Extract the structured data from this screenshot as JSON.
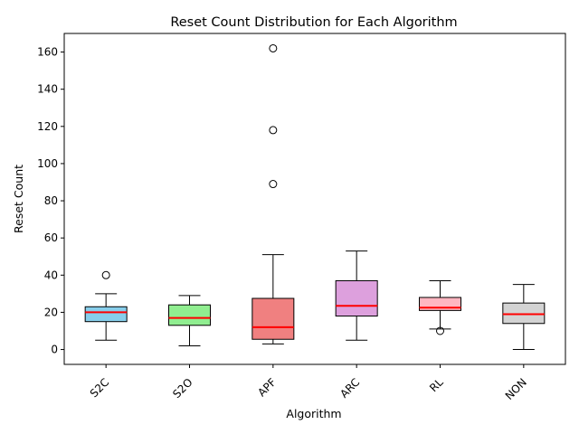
{
  "chart_data": {
    "type": "box",
    "title": "Reset Count Distribution for Each Algorithm",
    "xlabel": "Algorithm",
    "ylabel": "Reset Count",
    "ylim": [
      -8,
      170
    ],
    "yticks": [
      0,
      20,
      40,
      60,
      80,
      100,
      120,
      140,
      160
    ],
    "grid": false,
    "legend": "none",
    "categories": [
      "S2C",
      "S2O",
      "APF",
      "ARC",
      "RL",
      "NON"
    ],
    "boxes": [
      {
        "label": "S2C",
        "whisker_low": 5,
        "q1": 15,
        "median": 20,
        "q3": 23,
        "whisker_high": 30,
        "outliers": [
          40
        ],
        "color": "#87ceeb"
      },
      {
        "label": "S2O",
        "whisker_low": 2,
        "q1": 13,
        "median": 17,
        "q3": 24,
        "whisker_high": 29,
        "outliers": [],
        "color": "#90ee90"
      },
      {
        "label": "APF",
        "whisker_low": 3,
        "q1": 5.5,
        "median": 12,
        "q3": 27.5,
        "whisker_high": 51,
        "outliers": [
          89,
          118,
          162
        ],
        "color": "#f08080"
      },
      {
        "label": "ARC",
        "whisker_low": 5,
        "q1": 18,
        "median": 23.5,
        "q3": 37,
        "whisker_high": 53,
        "outliers": [],
        "color": "#dda0dd"
      },
      {
        "label": "RL",
        "whisker_low": 11,
        "q1": 21,
        "median": 22.5,
        "q3": 28,
        "whisker_high": 37,
        "outliers": [
          10
        ],
        "color": "#ffb6c1"
      },
      {
        "label": "NON",
        "whisker_low": 0,
        "q1": 14,
        "median": 19,
        "q3": 25,
        "whisker_high": 35,
        "outliers": [],
        "color": "#d3d3d3"
      }
    ],
    "median_color": "#ff0000"
  }
}
